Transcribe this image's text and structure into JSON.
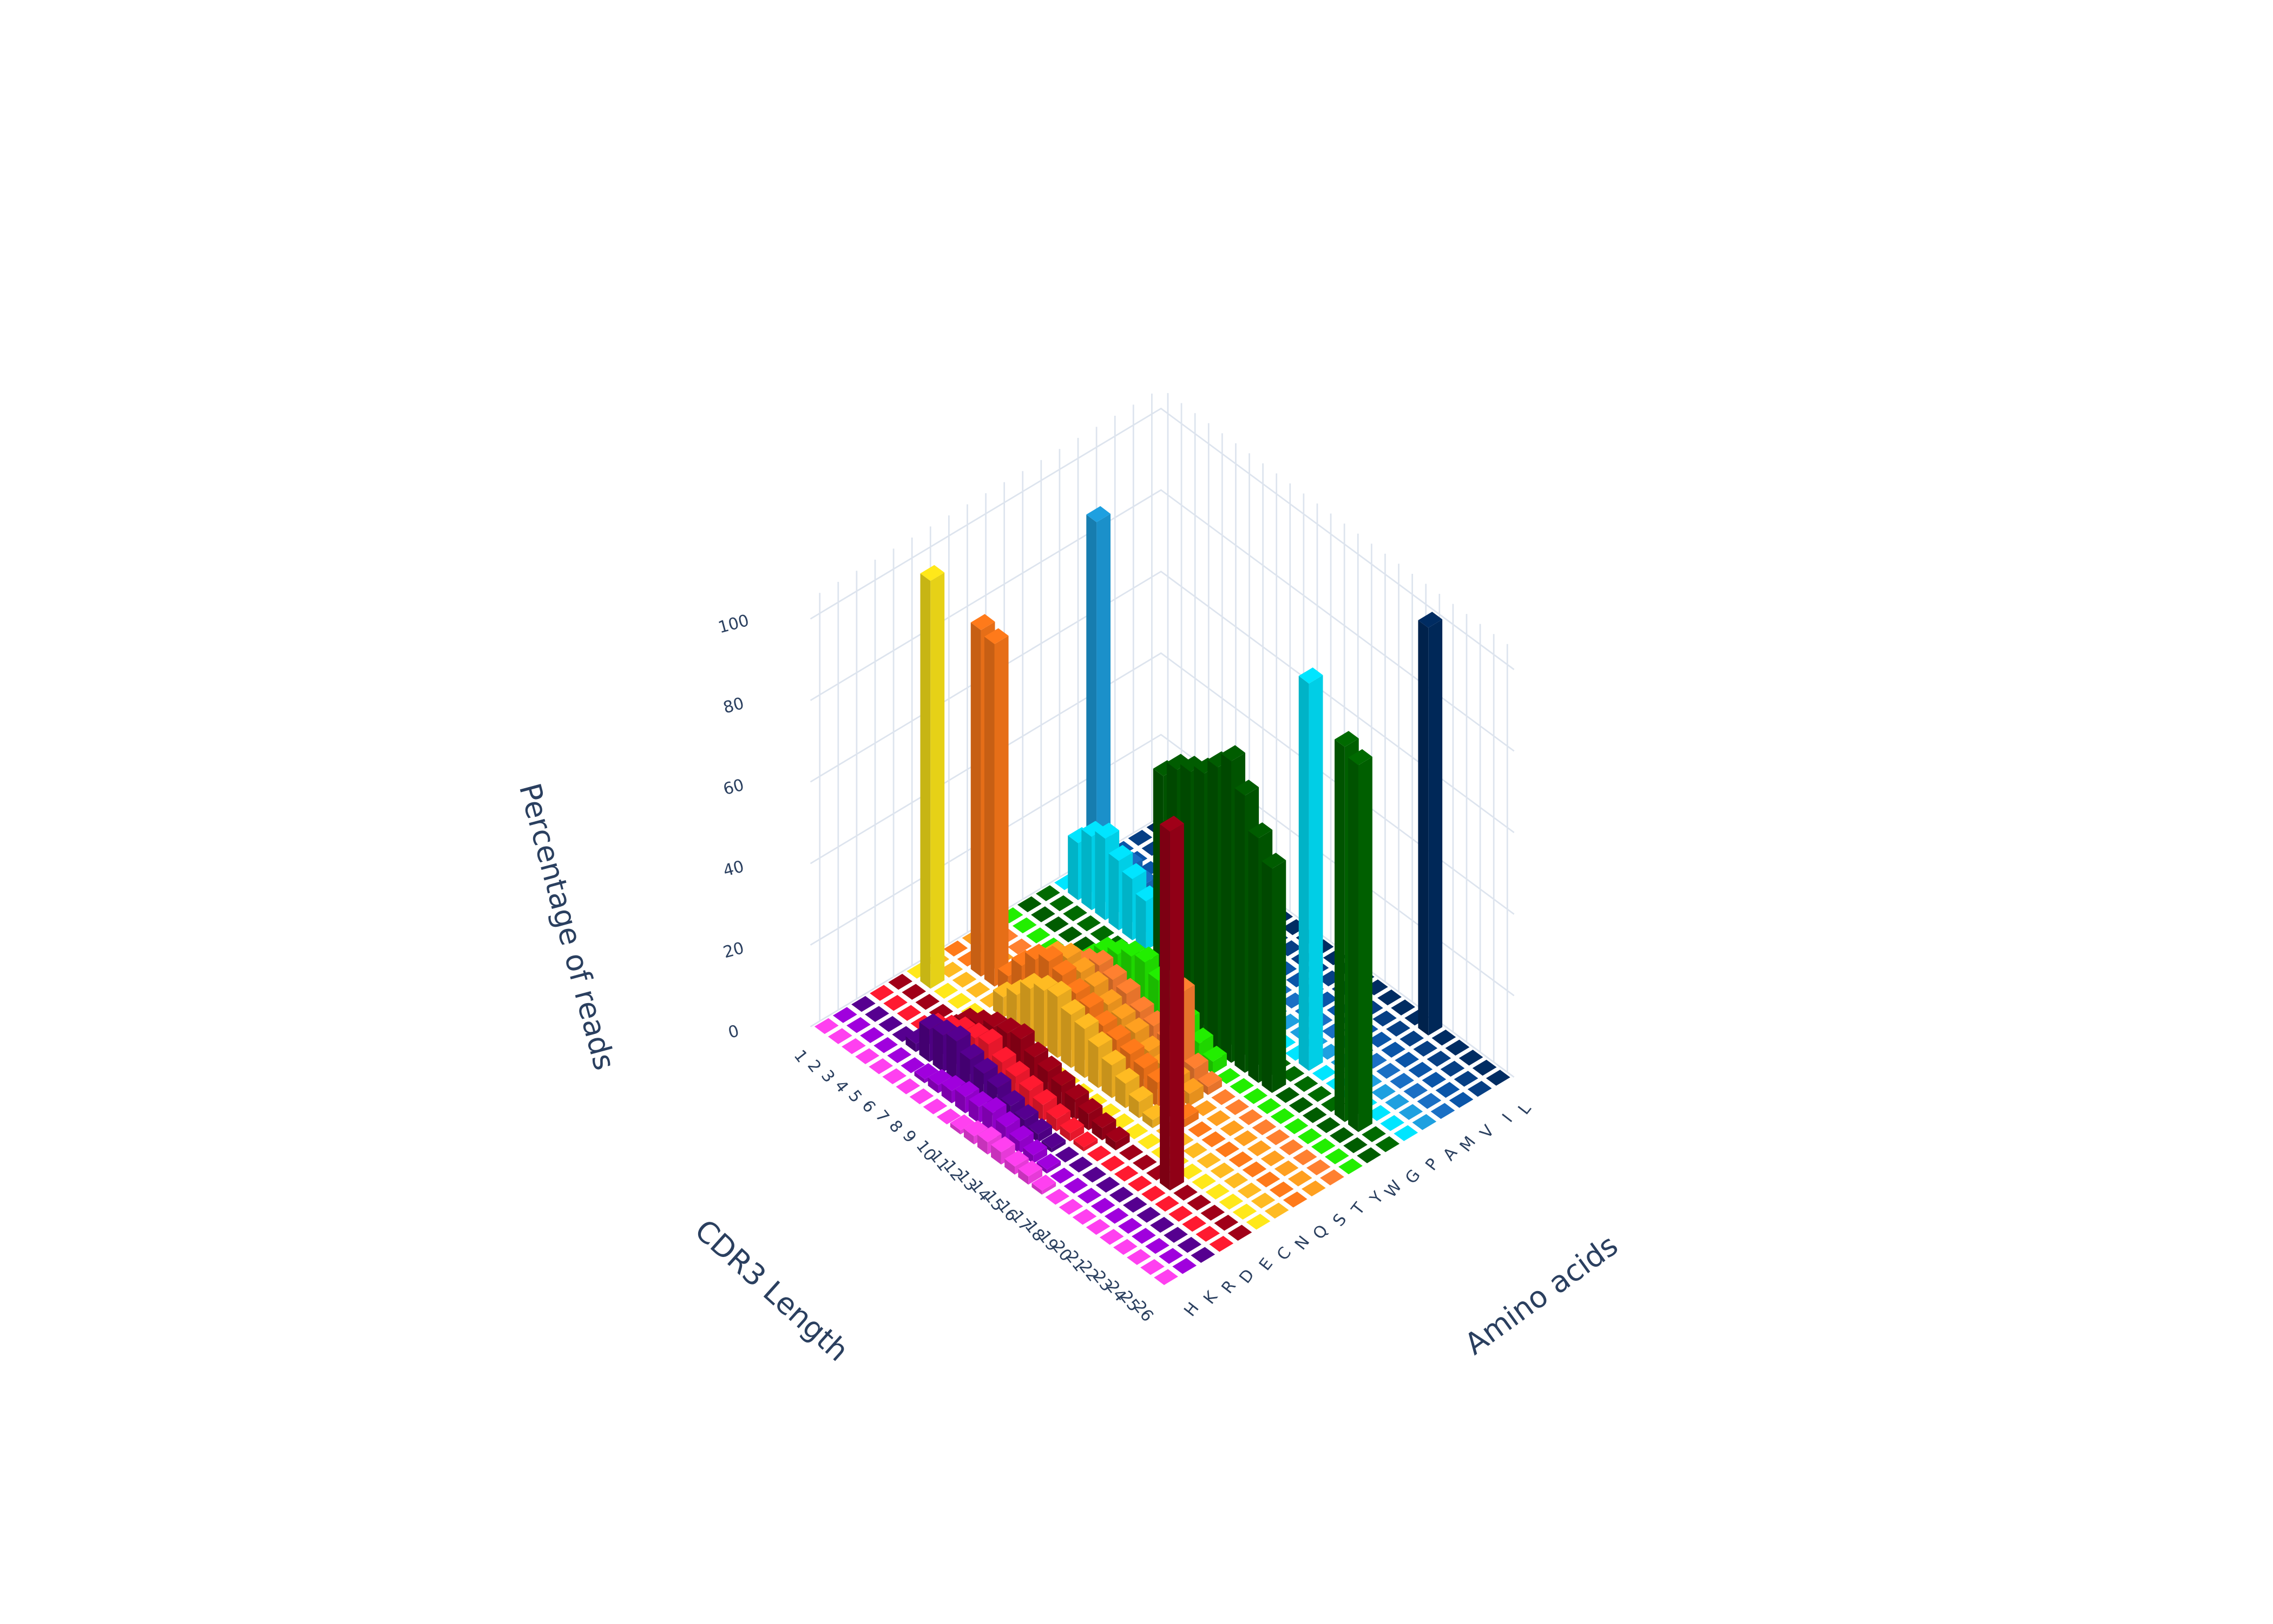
{
  "chart_data": {
    "type": "bar3d",
    "x_title": "Amino acids",
    "y_title": "CDR3 Length",
    "z_title": "Percentage of reads",
    "lengths": [
      1,
      2,
      3,
      4,
      5,
      6,
      7,
      8,
      9,
      10,
      11,
      12,
      13,
      14,
      15,
      16,
      17,
      18,
      19,
      20,
      21,
      22,
      23,
      24,
      25,
      26
    ],
    "zlim": [
      0,
      105
    ],
    "zticks": [
      0,
      20,
      40,
      60,
      80,
      100
    ],
    "grid": true,
    "series": [
      {
        "name": "H",
        "color": "#ff40f0",
        "values": [
          0,
          0,
          0,
          0,
          0,
          0,
          0,
          0,
          0,
          0,
          1,
          2,
          3,
          3,
          2,
          2,
          1,
          0,
          0,
          0,
          0,
          0,
          0,
          0,
          0,
          0
        ]
      },
      {
        "name": "K",
        "color": "#a000dd",
        "values": [
          0,
          0,
          0,
          0,
          0,
          0,
          1,
          2,
          3,
          4,
          4,
          5,
          4,
          3,
          2,
          1,
          0,
          0,
          0,
          0,
          0,
          0,
          0,
          0,
          0,
          0
        ]
      },
      {
        "name": "R",
        "color": "#560090",
        "values": [
          0,
          0,
          0,
          0,
          2,
          8,
          9,
          10,
          8,
          7,
          6,
          4,
          3,
          2,
          1,
          0,
          0,
          0,
          0,
          0,
          0,
          0,
          0,
          0,
          0,
          0
        ]
      },
      {
        "name": "D",
        "color": "#ff1a30",
        "values": [
          0,
          0,
          0,
          0,
          3,
          5,
          7,
          8,
          9,
          7,
          6,
          5,
          4,
          3,
          2,
          1,
          0,
          0,
          0,
          0,
          0,
          0,
          0,
          0,
          0,
          0
        ]
      },
      {
        "name": "E",
        "color": "#a00018",
        "values": [
          0,
          0,
          0,
          0,
          0,
          4,
          6,
          8,
          9,
          10,
          8,
          7,
          6,
          5,
          4,
          3,
          2,
          0,
          0,
          0,
          88,
          0,
          0,
          0,
          0,
          0
        ]
      },
      {
        "name": "C",
        "color": "#ffe81a",
        "values": [
          0,
          100,
          0,
          0,
          0,
          0,
          0,
          0,
          0,
          0,
          0,
          0,
          0,
          0,
          0,
          0,
          0,
          0,
          0,
          0,
          0,
          0,
          0,
          0,
          0,
          0
        ]
      },
      {
        "name": "N",
        "color": "#ffbb22",
        "values": [
          0,
          0,
          0,
          0,
          0,
          5,
          8,
          12,
          14,
          15,
          13,
          12,
          10,
          8,
          6,
          4,
          2,
          0,
          0,
          0,
          0,
          0,
          0,
          0,
          0,
          0
        ]
      },
      {
        "name": "Q",
        "color": "#ff7a1a",
        "values": [
          0,
          0,
          85,
          84,
          5,
          10,
          14,
          16,
          15,
          13,
          12,
          10,
          9,
          8,
          7,
          6,
          4,
          2,
          0,
          0,
          0,
          0,
          0,
          0,
          0,
          0
        ]
      },
      {
        "name": "S",
        "color": "#ffa020",
        "values": [
          0,
          0,
          0,
          0,
          4,
          8,
          12,
          14,
          13,
          12,
          10,
          9,
          8,
          6,
          5,
          4,
          3,
          0,
          0,
          0,
          0,
          0,
          0,
          0,
          0,
          0
        ]
      },
      {
        "name": "T",
        "color": "#ff8030",
        "values": [
          0,
          0,
          0,
          0,
          2,
          5,
          8,
          10,
          12,
          11,
          10,
          8,
          7,
          6,
          20,
          4,
          2,
          0,
          0,
          0,
          0,
          0,
          0,
          0,
          0,
          0
        ]
      },
      {
        "name": "Y",
        "color": "#22ee00",
        "values": [
          0,
          0,
          0,
          0,
          0,
          0,
          6,
          10,
          12,
          14,
          15,
          13,
          11,
          8,
          5,
          3,
          0,
          0,
          0,
          0,
          0,
          0,
          0,
          0,
          0,
          0
        ]
      },
      {
        "name": "W",
        "color": "#005c00",
        "values": [
          0,
          0,
          0,
          0,
          0,
          0,
          0,
          0,
          0,
          0,
          58,
          62,
          64,
          66,
          70,
          74,
          68,
          60,
          55,
          0,
          0,
          0,
          0,
          0,
          0,
          0
        ]
      },
      {
        "name": "G",
        "color": "#006a00",
        "values": [
          0,
          0,
          0,
          0,
          0,
          0,
          0,
          0,
          0,
          0,
          0,
          0,
          0,
          0,
          0,
          0,
          0,
          0,
          0,
          0,
          0,
          0,
          92,
          90,
          0,
          0
        ]
      },
      {
        "name": "P",
        "color": "#00e5ff",
        "values": [
          0,
          14,
          18,
          20,
          17,
          15,
          12,
          0,
          0,
          0,
          0,
          0,
          0,
          0,
          0,
          0,
          0,
          0,
          95,
          0,
          0,
          0,
          0,
          0,
          0,
          0
        ]
      },
      {
        "name": "A",
        "color": "#1ea0e0",
        "values": [
          0,
          90,
          0,
          0,
          0,
          0,
          0,
          0,
          0,
          0,
          0,
          0,
          0,
          0,
          0,
          0,
          0,
          0,
          0,
          0,
          0,
          0,
          0,
          0,
          0,
          0
        ]
      },
      {
        "name": "M",
        "color": "#1a6fc4",
        "values": [
          0,
          0,
          5,
          3,
          2,
          0,
          0,
          0,
          0,
          0,
          0,
          0,
          0,
          0,
          0,
          0,
          0,
          0,
          0,
          0,
          0,
          0,
          0,
          0,
          0,
          0
        ]
      },
      {
        "name": "V",
        "color": "#0a55a8",
        "values": [
          0,
          0,
          0,
          0,
          0,
          0,
          0,
          0,
          0,
          0,
          0,
          0,
          0,
          0,
          0,
          0,
          0,
          0,
          0,
          0,
          0,
          0,
          0,
          0,
          0,
          0
        ]
      },
      {
        "name": "I",
        "color": "#063f84",
        "values": [
          0,
          0,
          0,
          0,
          0,
          0,
          0,
          0,
          0,
          0,
          0,
          0,
          0,
          0,
          0,
          0,
          0,
          0,
          0,
          0,
          0,
          0,
          0,
          0,
          0,
          0
        ]
      },
      {
        "name": "L",
        "color": "#002c62",
        "values": [
          0,
          0,
          0,
          0,
          0,
          0,
          0,
          0,
          0,
          0,
          0,
          0,
          0,
          0,
          0,
          0,
          0,
          0,
          0,
          0,
          100,
          0,
          0,
          0,
          0,
          0
        ]
      }
    ]
  }
}
